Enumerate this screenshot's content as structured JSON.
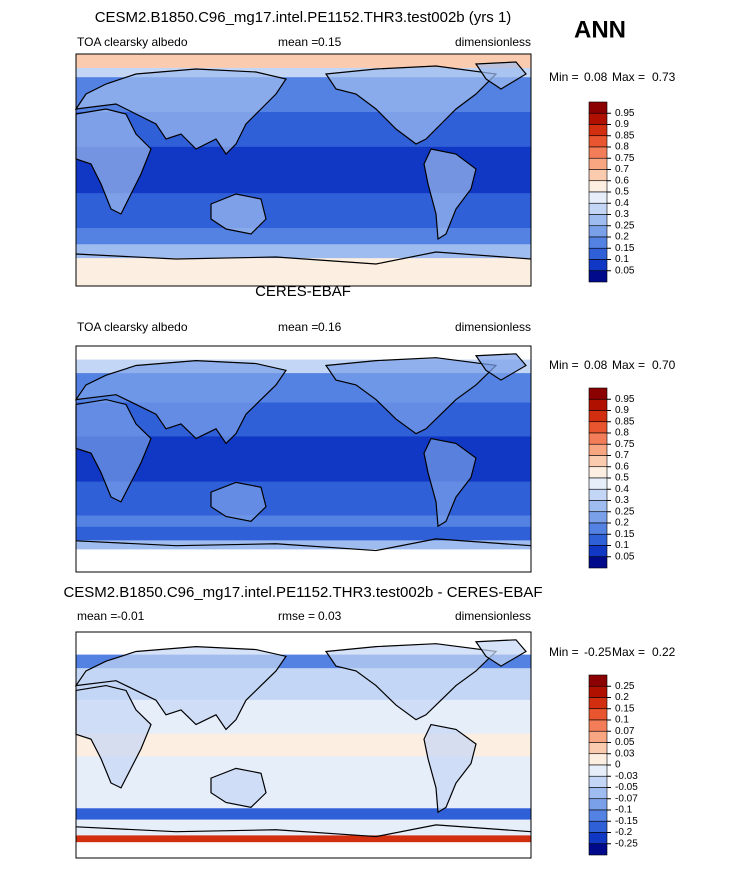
{
  "season": "ANN",
  "panels": [
    {
      "title": "CESM2.B1850.C96_mg17.intel.PE1152.THR3.test002b (yrs 1)",
      "fields": [
        {
          "text": "TOA clearsky albedo"
        },
        {
          "label": "mean =",
          "value": 0.15
        },
        {
          "text": "dimensionless"
        }
      ],
      "min_label": "Min =",
      "min": 0.08,
      "max_label": "Max =",
      "max": 0.73,
      "colorbar": {
        "levels": [
          0.95,
          0.9,
          0.85,
          0.8,
          0.75,
          0.7,
          0.6,
          0.5,
          0.4,
          0.3,
          0.25,
          0.2,
          0.15,
          0.1,
          0.05
        ],
        "colors": [
          "#8b0000",
          "#b01000",
          "#d22e10",
          "#e8552e",
          "#f27d58",
          "#f8a582",
          "#fbcbb0",
          "#fdeee2",
          "#e6eefa",
          "#c4d6f5",
          "#9fbcf0",
          "#7aa0ea",
          "#5482e2",
          "#3060d8",
          "#1038c4",
          "#000a8a"
        ]
      }
    },
    {
      "title": "CERES-EBAF",
      "fields": [
        {
          "text": "TOA clearsky albedo"
        },
        {
          "label": "mean =",
          "value": 0.16
        },
        {
          "text": "dimensionless"
        }
      ],
      "min_label": "Min =",
      "min": 0.08,
      "max_label": "Max =",
      "max": {
        "value": 0.7,
        "label": "0.70"
      },
      "colorbar": {
        "levels": [
          0.95,
          0.9,
          0.85,
          0.8,
          0.75,
          0.7,
          0.6,
          0.5,
          0.4,
          0.3,
          0.25,
          0.2,
          0.15,
          0.1,
          0.05
        ],
        "colors": [
          "#8b0000",
          "#b01000",
          "#d22e10",
          "#e8552e",
          "#f27d58",
          "#f8a582",
          "#fbcbb0",
          "#fdeee2",
          "#e6eefa",
          "#c4d6f5",
          "#9fbcf0",
          "#7aa0ea",
          "#5482e2",
          "#3060d8",
          "#1038c4",
          "#000a8a"
        ]
      }
    },
    {
      "title": "CESM2.B1850.C96_mg17.intel.PE1152.THR3.test002b - CERES-EBAF",
      "fields": [
        {
          "label": "mean =",
          "value": -0.01
        },
        {
          "label": "rmse =",
          "value": 0.03
        },
        {
          "text": "dimensionless"
        }
      ],
      "min_label": "Min =",
      "min": -0.25,
      "max_label": "Max =",
      "max": 0.22,
      "colorbar": {
        "levels": [
          0.25,
          0.2,
          0.15,
          0.1,
          0.07,
          0.05,
          0.03,
          0,
          -0.03,
          -0.05,
          -0.07,
          -0.1,
          -0.15,
          -0.2,
          -0.25
        ],
        "colors": [
          "#8b0000",
          "#b01000",
          "#d22e10",
          "#e8552e",
          "#f27d58",
          "#f8a582",
          "#fbcbb0",
          "#fdeee2",
          "#e6eefa",
          "#c4d6f5",
          "#9fbcf0",
          "#7aa0ea",
          "#5482e2",
          "#3060d8",
          "#1038c4",
          "#000a8a"
        ]
      }
    }
  ]
}
